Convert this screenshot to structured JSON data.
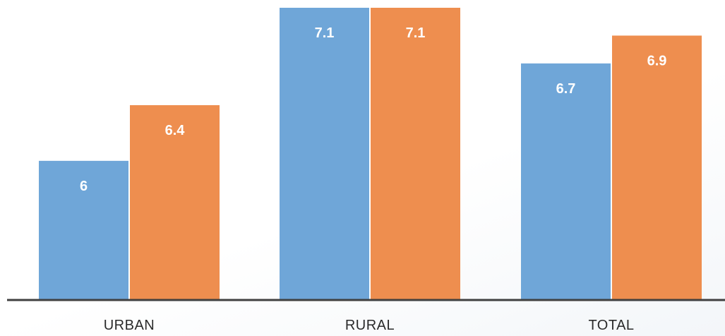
{
  "chart_data": {
    "type": "bar",
    "categories": [
      "URBAN",
      "RURAL",
      "TOTAL"
    ],
    "series": [
      {
        "values": [
          6,
          7.1,
          6.7
        ],
        "color": "#6fa6d8"
      },
      {
        "values": [
          6.4,
          7.1,
          6.9
        ],
        "color": "#ee8e4f"
      }
    ],
    "value_labels": [
      [
        "6",
        "7.1",
        "6.7"
      ],
      [
        "6.4",
        "7.1",
        "6.9"
      ]
    ],
    "title": "",
    "xlabel": "",
    "ylabel": "",
    "ylim": [
      5,
      7.1
    ],
    "grid": false,
    "legend": "none"
  }
}
